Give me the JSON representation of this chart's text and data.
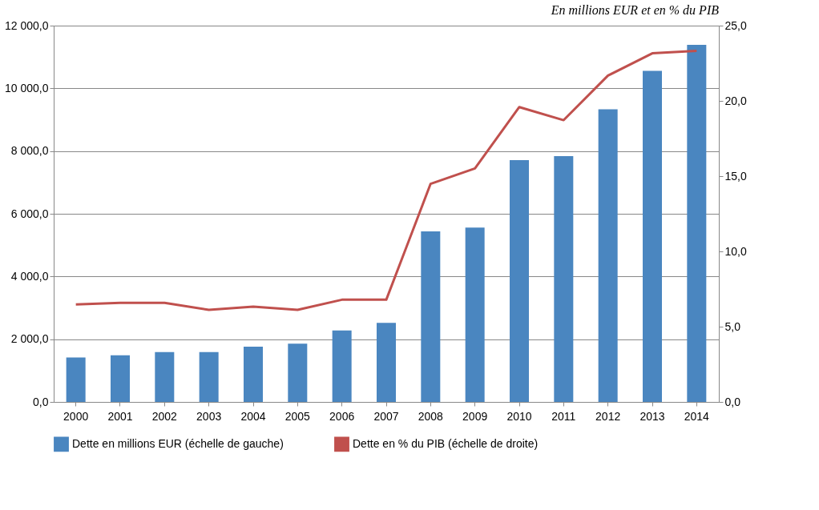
{
  "chart_data": {
    "type": "bar",
    "title": "En millions EUR et en % du PIB",
    "categories": [
      "2000",
      "2001",
      "2002",
      "2003",
      "2004",
      "2005",
      "2006",
      "2007",
      "2008",
      "2009",
      "2010",
      "2011",
      "2012",
      "2013",
      "2014"
    ],
    "series": [
      {
        "name": "Dette en millions EUR (échelle de gauche)",
        "color": "#4a86c0",
        "values": [
          1420,
          1490,
          1590,
          1590,
          1760,
          1860,
          2280,
          2520,
          5440,
          5560,
          7710,
          7840,
          9330,
          10560,
          11390
        ]
      },
      {
        "name": "Dette en % du PIB (échelle de droite)",
        "type": "line",
        "axis": "y2",
        "color": "#c0504d",
        "values": [
          6.48,
          6.58,
          6.58,
          6.12,
          6.33,
          6.12,
          6.79,
          6.79,
          14.49,
          15.51,
          19.59,
          18.72,
          21.68,
          23.16,
          23.32
        ]
      }
    ],
    "ylim": [
      0,
      12000
    ],
    "yticks": [
      {
        "value": 0,
        "label": "0,0"
      },
      {
        "value": 2000,
        "label": "2 000,0"
      },
      {
        "value": 4000,
        "label": "4 000,0"
      },
      {
        "value": 6000,
        "label": "6 000,0"
      },
      {
        "value": 8000,
        "label": "8 000,0"
      },
      {
        "value": 10000,
        "label": "10 000,0"
      },
      {
        "value": 12000,
        "label": "12 000,0"
      }
    ],
    "y2lim": [
      0,
      25
    ],
    "y2ticks": [
      {
        "value": 0,
        "label": "0,0"
      },
      {
        "value": 5,
        "label": "5,0"
      },
      {
        "value": 10,
        "label": "10,0"
      },
      {
        "value": 15,
        "label": "15,0"
      },
      {
        "value": 20,
        "label": "20,0"
      },
      {
        "value": 25,
        "label": "25,0"
      }
    ],
    "grid": "y",
    "legend": "bottom",
    "line_style": "solid",
    "marker": "none"
  }
}
